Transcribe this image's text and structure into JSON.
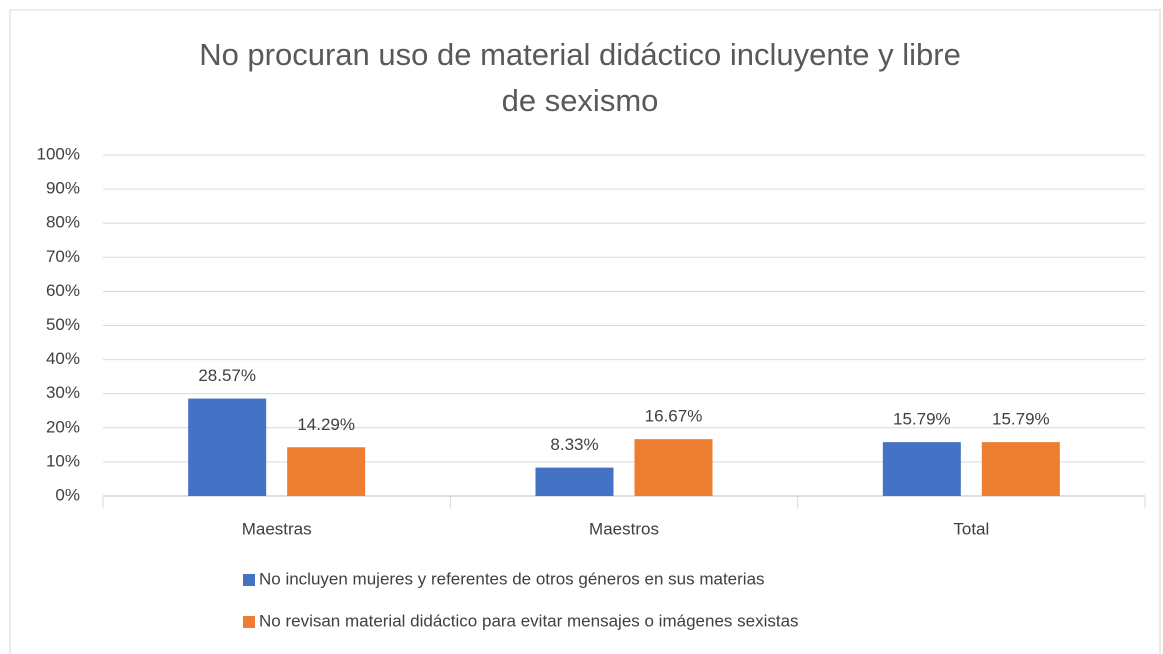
{
  "chart_data": {
    "type": "bar",
    "title": "No procuran uso de material didáctico incluyente y libre de sexismo",
    "categories": [
      "Maestras",
      "Maestros",
      "Total"
    ],
    "series": [
      {
        "name": "No incluyen mujeres y referentes de otros géneros en sus materias",
        "color": "#4472c4",
        "values": [
          28.57,
          8.33,
          15.79
        ],
        "value_labels": [
          "28.57%",
          "8.33%",
          "15.79%"
        ]
      },
      {
        "name": "No revisan material didáctico para evitar mensajes o imágenes sexistas",
        "color": "#ed7d31",
        "values": [
          14.29,
          16.67,
          15.79
        ],
        "value_labels": [
          "14.29%",
          "16.67%",
          "15.79%"
        ]
      }
    ],
    "ylim": [
      0,
      100
    ],
    "yticks": [
      {
        "value": 0,
        "label": "0%"
      },
      {
        "value": 10,
        "label": "10%"
      },
      {
        "value": 20,
        "label": "20%"
      },
      {
        "value": 30,
        "label": "30%"
      },
      {
        "value": 40,
        "label": "40%"
      },
      {
        "value": 50,
        "label": "50%"
      },
      {
        "value": 60,
        "label": "60%"
      },
      {
        "value": 70,
        "label": "70%"
      },
      {
        "value": 80,
        "label": "80%"
      },
      {
        "value": 90,
        "label": "90%"
      },
      {
        "value": 100,
        "label": "100%"
      }
    ],
    "grid": true,
    "legend": "bottom"
  }
}
